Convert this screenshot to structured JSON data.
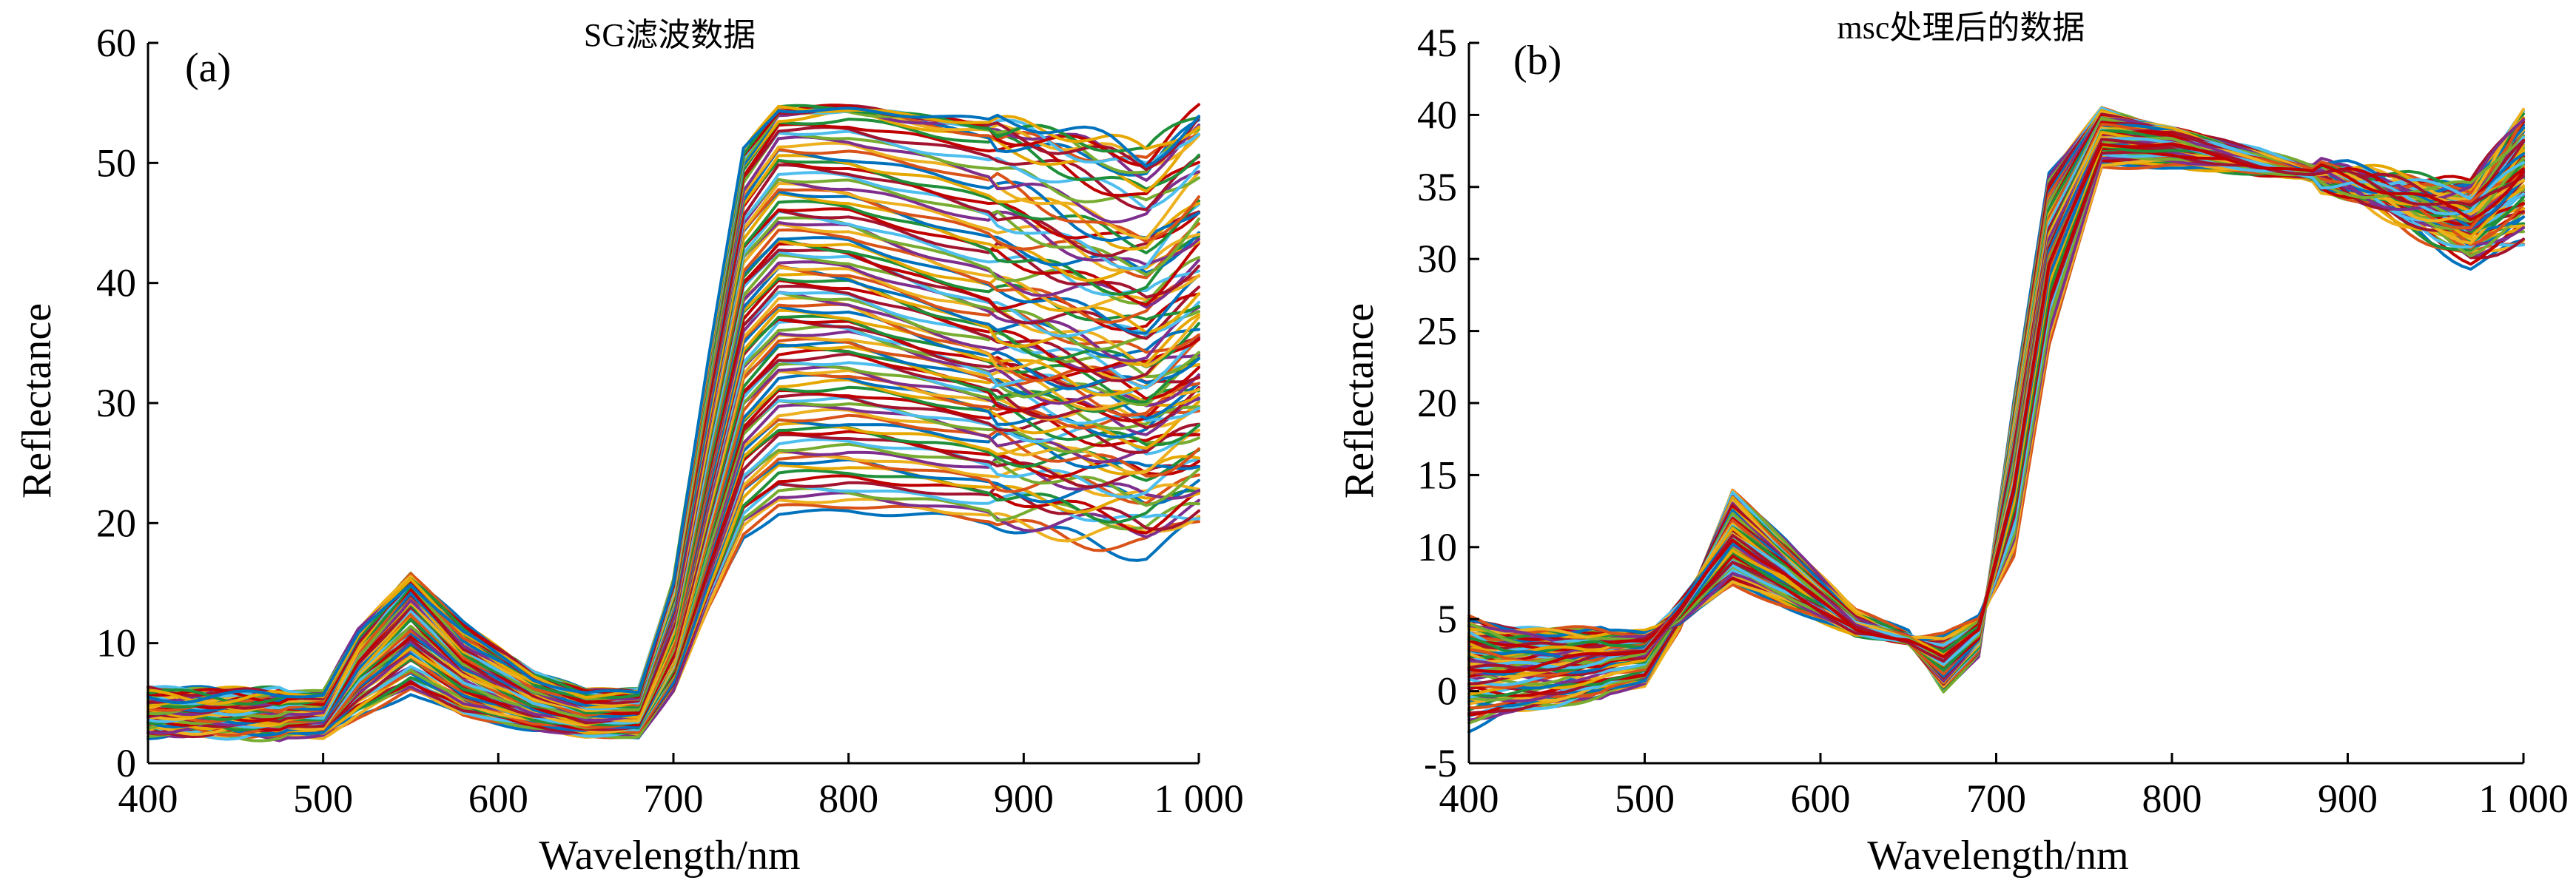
{
  "chart_data": [
    {
      "type": "line",
      "panel_tag": "(a)",
      "title": "SG滤波数据",
      "xlabel": "Wavelength/nm",
      "ylabel": "Reflectance",
      "xlim": [
        400,
        1000
      ],
      "ylim": [
        0,
        60
      ],
      "xticks": [
        400,
        500,
        600,
        700,
        800,
        900,
        1000
      ],
      "xtick_labels": [
        "400",
        "500",
        "600",
        "700",
        "800",
        "900",
        "1 000"
      ],
      "yticks": [
        0,
        10,
        20,
        30,
        40,
        50,
        60
      ],
      "ytick_labels": [
        "0",
        "10",
        "20",
        "30",
        "40",
        "50",
        "60"
      ],
      "grid": false,
      "legend": "none",
      "series_count": 120,
      "x": [
        400,
        450,
        500,
        520,
        550,
        580,
        620,
        650,
        680,
        700,
        720,
        740,
        760,
        800,
        850,
        900,
        950,
        970,
        1000
      ],
      "series": [
        {
          "values": [
            2.5,
            2.3,
            2.3,
            4.0,
            6.0,
            4.0,
            2.8,
            2.2,
            2.2,
            6.0,
            13.0,
            19.0,
            21.0,
            21.0,
            20.5,
            19.5,
            18.5,
            18.0,
            20.0
          ]
        },
        {
          "values": [
            3.0,
            2.8,
            2.8,
            5.0,
            7.5,
            5.0,
            3.5,
            2.8,
            2.8,
            7.0,
            15.0,
            22.5,
            25.0,
            25.0,
            24.0,
            23.0,
            22.0,
            21.5,
            23.0
          ]
        },
        {
          "values": [
            3.5,
            3.3,
            3.3,
            6.0,
            9.0,
            6.0,
            4.0,
            3.2,
            3.2,
            8.0,
            17.0,
            26.0,
            28.5,
            28.5,
            27.5,
            26.0,
            25.0,
            24.5,
            26.0
          ]
        },
        {
          "values": [
            3.0,
            2.9,
            2.9,
            6.5,
            10.0,
            6.5,
            4.3,
            3.3,
            3.3,
            8.5,
            19.0,
            29.0,
            32.0,
            32.0,
            30.5,
            29.0,
            28.0,
            27.5,
            29.5
          ]
        },
        {
          "values": [
            3.8,
            3.6,
            3.6,
            7.5,
            11.0,
            7.5,
            4.8,
            3.6,
            3.6,
            9.5,
            21.0,
            32.0,
            35.0,
            35.0,
            33.0,
            31.0,
            30.0,
            29.5,
            31.5
          ]
        },
        {
          "values": [
            4.0,
            3.8,
            3.8,
            8.0,
            12.5,
            8.0,
            5.0,
            3.8,
            3.8,
            10.0,
            23.0,
            35.0,
            38.0,
            37.5,
            35.0,
            33.0,
            32.0,
            31.5,
            34.0
          ]
        },
        {
          "values": [
            4.2,
            4.0,
            4.0,
            9.0,
            13.5,
            9.0,
            5.5,
            4.2,
            4.2,
            11.0,
            25.0,
            38.0,
            41.0,
            40.5,
            38.0,
            36.0,
            34.0,
            33.5,
            36.5
          ]
        },
        {
          "values": [
            4.5,
            4.2,
            4.2,
            9.5,
            14.5,
            9.5,
            6.0,
            4.5,
            4.5,
            12.0,
            27.0,
            41.0,
            44.0,
            43.5,
            41.0,
            39.0,
            37.5,
            37.0,
            40.0
          ]
        },
        {
          "values": [
            5.0,
            4.8,
            4.8,
            10.0,
            15.0,
            10.0,
            6.5,
            5.0,
            5.0,
            13.0,
            29.0,
            44.0,
            47.5,
            47.0,
            45.0,
            43.0,
            41.0,
            40.5,
            44.0
          ]
        },
        {
          "values": [
            5.5,
            5.3,
            5.3,
            10.5,
            15.5,
            10.5,
            7.0,
            5.5,
            5.5,
            14.0,
            31.0,
            47.0,
            51.0,
            50.5,
            49.0,
            47.0,
            44.0,
            43.5,
            47.0
          ]
        },
        {
          "values": [
            6.0,
            5.8,
            5.8,
            11.0,
            15.5,
            11.5,
            7.5,
            6.0,
            6.0,
            15.0,
            33.0,
            50.0,
            54.0,
            54.5,
            53.0,
            52.0,
            50.0,
            49.0,
            52.5
          ]
        },
        {
          "values": [
            5.8,
            5.6,
            5.6,
            10.5,
            15.0,
            11.0,
            7.2,
            5.8,
            5.8,
            15.0,
            33.5,
            51.0,
            54.5,
            54.5,
            54.0,
            53.0,
            51.5,
            50.5,
            54.0
          ]
        }
      ]
    },
    {
      "type": "line",
      "panel_tag": "(b)",
      "title": "msc处理后的数据",
      "xlabel": "Wavelength/nm",
      "ylabel": "Reflectance",
      "xlim": [
        400,
        1000
      ],
      "ylim": [
        -5,
        45
      ],
      "xticks": [
        400,
        500,
        600,
        700,
        800,
        900,
        1000
      ],
      "xtick_labels": [
        "400",
        "500",
        "600",
        "700",
        "800",
        "900",
        "1 000"
      ],
      "yticks": [
        -5,
        0,
        5,
        10,
        15,
        20,
        25,
        30,
        35,
        40,
        45
      ],
      "ytick_labels": [
        "-5",
        "0",
        "5",
        "10",
        "15",
        "20",
        "25",
        "30",
        "35",
        "40",
        "45"
      ],
      "grid": false,
      "legend": "none",
      "series_count": 120,
      "x": [
        400,
        420,
        450,
        500,
        520,
        550,
        580,
        620,
        650,
        670,
        690,
        710,
        730,
        760,
        800,
        850,
        900,
        950,
        970,
        1000
      ],
      "series": [
        {
          "values": [
            -2.5,
            -1.5,
            -1.0,
            0.5,
            4.5,
            14.0,
            10.5,
            5.5,
            4.0,
            0.0,
            2.5,
            20.0,
            36.0,
            40.5,
            38.5,
            37.0,
            35.0,
            31.5,
            30.0,
            31.0
          ]
        },
        {
          "values": [
            -0.5,
            -0.5,
            -0.2,
            1.0,
            5.0,
            13.0,
            9.5,
            5.0,
            3.5,
            0.5,
            3.0,
            18.0,
            34.0,
            40.0,
            39.0,
            37.5,
            35.5,
            32.0,
            31.0,
            33.0
          ]
        },
        {
          "values": [
            1.0,
            1.0,
            1.2,
            2.0,
            5.5,
            12.0,
            9.0,
            4.8,
            3.5,
            1.0,
            3.5,
            16.5,
            32.0,
            39.5,
            39.0,
            37.0,
            35.0,
            33.0,
            32.0,
            34.5
          ]
        },
        {
          "values": [
            2.5,
            2.0,
            2.2,
            3.0,
            6.0,
            11.0,
            8.5,
            4.5,
            3.8,
            1.8,
            4.0,
            15.0,
            30.5,
            38.5,
            38.5,
            37.0,
            35.0,
            33.5,
            33.0,
            36.0
          ]
        },
        {
          "values": [
            3.0,
            2.8,
            3.0,
            3.5,
            6.0,
            10.0,
            7.8,
            4.5,
            3.8,
            2.5,
            4.5,
            13.5,
            29.0,
            38.0,
            38.0,
            36.5,
            35.0,
            34.0,
            33.5,
            37.0
          ]
        },
        {
          "values": [
            3.5,
            3.5,
            3.5,
            3.8,
            5.5,
            9.0,
            7.2,
            4.3,
            3.6,
            3.0,
            4.8,
            12.0,
            27.5,
            37.5,
            37.5,
            36.5,
            35.5,
            34.5,
            34.0,
            38.0
          ]
        },
        {
          "values": [
            4.0,
            3.8,
            3.8,
            3.9,
            5.0,
            8.0,
            6.5,
            4.2,
            3.5,
            3.5,
            5.0,
            10.5,
            26.0,
            37.0,
            37.0,
            36.0,
            35.5,
            34.5,
            34.5,
            39.0
          ]
        },
        {
          "values": [
            5.0,
            4.2,
            4.0,
            4.0,
            4.8,
            7.5,
            6.0,
            4.0,
            3.5,
            3.8,
            5.0,
            9.5,
            24.0,
            36.5,
            36.5,
            36.0,
            36.0,
            35.0,
            35.0,
            40.0
          ]
        },
        {
          "values": [
            2.0,
            1.5,
            1.8,
            2.5,
            5.8,
            11.5,
            8.8,
            4.6,
            3.7,
            1.5,
            3.8,
            15.5,
            31.0,
            39.0,
            38.5,
            37.0,
            35.0,
            33.0,
            32.5,
            35.0
          ]
        },
        {
          "values": [
            1.5,
            1.8,
            2.0,
            2.8,
            5.5,
            10.5,
            8.2,
            4.4,
            3.6,
            2.2,
            4.2,
            14.0,
            29.5,
            38.0,
            38.0,
            36.5,
            35.5,
            33.5,
            33.0,
            36.5
          ]
        }
      ]
    }
  ],
  "palette": [
    "#0072BD",
    "#D95319",
    "#EDB120",
    "#7E2F8E",
    "#77AC30",
    "#4DBEEE",
    "#A2142F",
    "#C00000",
    "#1F8F3A",
    "#E6A800"
  ]
}
